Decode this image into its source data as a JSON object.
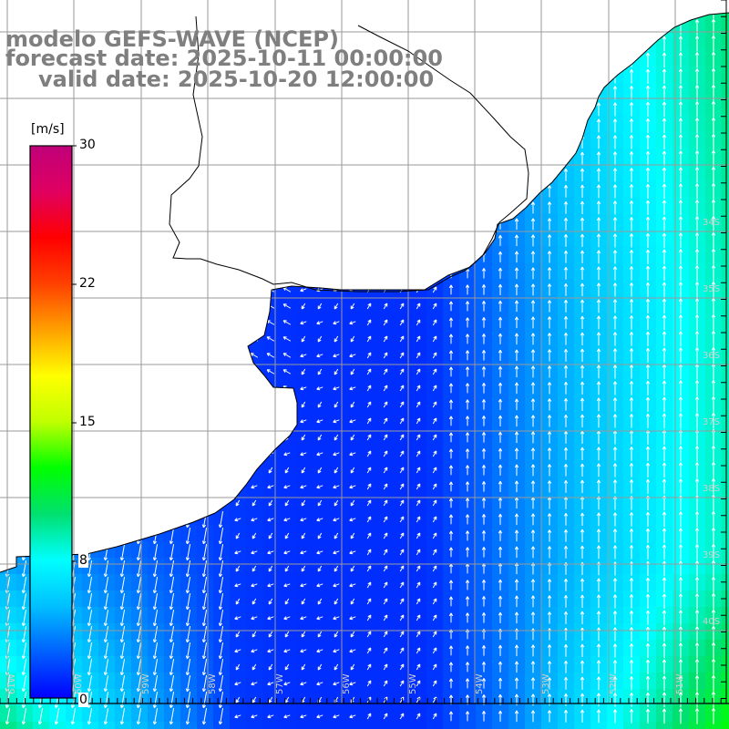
{
  "title": {
    "line1": "modelo GEFS-WAVE (NCEP)",
    "line2": "forecast date: 2025-10-11 00:00:00",
    "line3": "valid date: 2025-10-20 12:00:00"
  },
  "colorbar": {
    "unit": "[m/s]",
    "ticks": [
      "30",
      "22",
      "15",
      "8",
      "0"
    ],
    "min": 0,
    "max": 30,
    "colors": [
      "#0000ff",
      "#0060ff",
      "#00c0ff",
      "#00ffff",
      "#00e070",
      "#00ff00",
      "#c0ff00",
      "#ffff00",
      "#ffa000",
      "#ff4000",
      "#ff0000",
      "#e00060",
      "#c0007a"
    ]
  },
  "map": {
    "lat_labels": [
      "34S",
      "35S",
      "36S",
      "37S",
      "38S",
      "39S",
      "40S"
    ],
    "lon_labels": [
      "61W",
      "60W",
      "59W",
      "58W",
      "57W",
      "56W",
      "55W",
      "54W",
      "53W",
      "52W",
      "51W"
    ],
    "land_color": "#ffffff",
    "grid_color": "#9a9a9a",
    "coast_color": "#000000",
    "arrow_color": "#ffffff"
  }
}
